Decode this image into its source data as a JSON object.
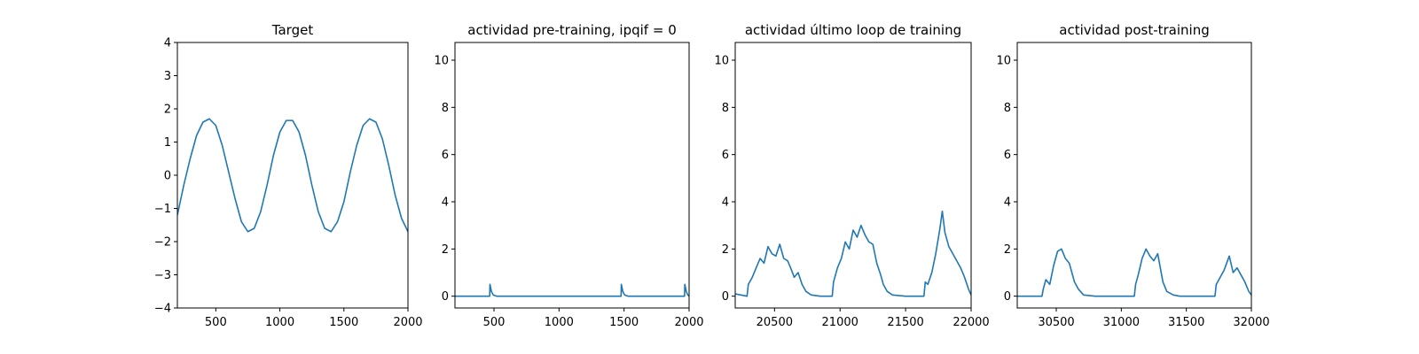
{
  "chart_data": [
    {
      "type": "line",
      "title": "Target",
      "xlim": [
        200,
        2000
      ],
      "ylim": [
        -4,
        4
      ],
      "xticks": [
        500,
        1000,
        1500,
        2000
      ],
      "xtick_labels": [
        "500",
        "1000",
        "1500",
        "2000"
      ],
      "yticks": [
        -4,
        -3,
        -2,
        -1,
        0,
        1,
        2,
        3,
        4
      ],
      "ytick_labels": [
        "−4",
        "−3",
        "−2",
        "−1",
        "0",
        "1",
        "2",
        "3",
        "4"
      ],
      "series": [
        {
          "color": "#1f77b4",
          "x": [
            200,
            250,
            300,
            350,
            400,
            450,
            500,
            550,
            600,
            650,
            700,
            750,
            800,
            850,
            900,
            950,
            1000,
            1050,
            1100,
            1150,
            1200,
            1250,
            1300,
            1350,
            1400,
            1450,
            1500,
            1550,
            1600,
            1650,
            1700,
            1750,
            1800,
            1850,
            1900,
            1950,
            2000
          ],
          "y": [
            -1.2,
            -0.3,
            0.5,
            1.2,
            1.6,
            1.7,
            1.5,
            0.9,
            0.1,
            -0.7,
            -1.4,
            -1.7,
            -1.6,
            -1.1,
            -0.3,
            0.6,
            1.3,
            1.65,
            1.65,
            1.3,
            0.6,
            -0.3,
            -1.1,
            -1.6,
            -1.7,
            -1.4,
            -0.8,
            0.1,
            0.9,
            1.5,
            1.7,
            1.6,
            1.1,
            0.3,
            -0.6,
            -1.3,
            -1.7
          ]
        }
      ]
    },
    {
      "type": "line",
      "title": "actividad pre-training, ipqif = 0",
      "xlim": [
        200,
        2000
      ],
      "ylim": [
        -0.5,
        10.75
      ],
      "xticks": [
        500,
        1000,
        1500,
        2000
      ],
      "xtick_labels": [
        "500",
        "1000",
        "1500",
        "2000"
      ],
      "yticks": [
        0,
        2,
        4,
        6,
        8,
        10
      ],
      "ytick_labels": [
        "0",
        "2",
        "4",
        "6",
        "8",
        "10"
      ],
      "series": [
        {
          "color": "#1f77b4",
          "x": [
            200,
            467,
            469,
            480,
            495,
            520,
            1477,
            1479,
            1490,
            1505,
            1530,
            1965,
            1967,
            1978,
            1990,
            2000
          ],
          "y": [
            0,
            0,
            0.5,
            0.2,
            0.05,
            0,
            0,
            0.5,
            0.2,
            0.05,
            0,
            0,
            0.5,
            0.2,
            0.05,
            0
          ]
        }
      ]
    },
    {
      "type": "line",
      "title": "actividad último loop de training",
      "xlim": [
        20200,
        22000
      ],
      "ylim": [
        -0.5,
        10.75
      ],
      "xticks": [
        20500,
        21000,
        21500,
        22000
      ],
      "xtick_labels": [
        "20500",
        "21000",
        "21500",
        "22000"
      ],
      "yticks": [
        0,
        2,
        4,
        6,
        8,
        10
      ],
      "ytick_labels": [
        "0",
        "2",
        "4",
        "6",
        "8",
        "10"
      ],
      "series": [
        {
          "color": "#1f77b4",
          "x": [
            20200,
            20290,
            20300,
            20330,
            20360,
            20390,
            20420,
            20450,
            20480,
            20510,
            20540,
            20570,
            20600,
            20630,
            20650,
            20680,
            20710,
            20740,
            20780,
            20850,
            20940,
            20950,
            20980,
            21010,
            21040,
            21070,
            21100,
            21130,
            21160,
            21190,
            21220,
            21250,
            21280,
            21310,
            21330,
            21360,
            21400,
            21500,
            21640,
            21650,
            21670,
            21700,
            21730,
            21760,
            21780,
            21800,
            21830,
            21860,
            21890,
            21920,
            21950,
            21980,
            22000
          ],
          "y": [
            0.1,
            0,
            0.5,
            0.8,
            1.2,
            1.6,
            1.4,
            2.1,
            1.8,
            1.7,
            2.2,
            1.6,
            1.5,
            1.1,
            0.8,
            1.0,
            0.5,
            0.2,
            0.05,
            0,
            0,
            0.6,
            1.2,
            1.6,
            2.3,
            2.0,
            2.8,
            2.5,
            3.0,
            2.6,
            2.3,
            2.2,
            1.4,
            0.9,
            0.5,
            0.2,
            0.05,
            0,
            0,
            0.6,
            0.5,
            1.0,
            1.8,
            2.8,
            3.6,
            2.7,
            2.1,
            1.8,
            1.5,
            1.2,
            0.8,
            0.3,
            0.05
          ]
        }
      ]
    },
    {
      "type": "line",
      "title": "actividad post-training",
      "xlim": [
        30200,
        32000
      ],
      "ylim": [
        -0.5,
        10.75
      ],
      "xticks": [
        30500,
        31000,
        31500,
        32000
      ],
      "xtick_labels": [
        "30500",
        "31000",
        "31500",
        "32000"
      ],
      "yticks": [
        0,
        2,
        4,
        6,
        8,
        10
      ],
      "ytick_labels": [
        "0",
        "2",
        "4",
        "6",
        "8",
        "10"
      ],
      "series": [
        {
          "color": "#1f77b4",
          "x": [
            30200,
            30390,
            30400,
            30420,
            30450,
            30480,
            30510,
            30540,
            30570,
            30600,
            30620,
            30640,
            30670,
            30710,
            30800,
            31100,
            31110,
            31130,
            31160,
            31190,
            31220,
            31250,
            31280,
            31300,
            31320,
            31350,
            31400,
            31450,
            31720,
            31730,
            31760,
            31790,
            31830,
            31860,
            31890,
            31920,
            31950,
            31980,
            32000
          ],
          "y": [
            0,
            0,
            0.3,
            0.7,
            0.5,
            1.3,
            1.9,
            2.0,
            1.6,
            1.4,
            1.0,
            0.6,
            0.3,
            0.05,
            0,
            0,
            0.5,
            0.9,
            1.6,
            2.0,
            1.7,
            1.5,
            1.8,
            1.2,
            0.6,
            0.2,
            0.05,
            0,
            0,
            0.5,
            0.8,
            1.1,
            1.7,
            1.0,
            1.2,
            0.9,
            0.6,
            0.2,
            0.05
          ]
        }
      ]
    }
  ]
}
